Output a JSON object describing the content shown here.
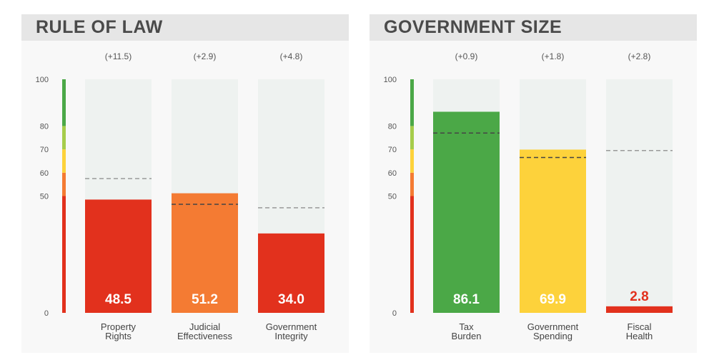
{
  "chart_data": [
    {
      "type": "bar",
      "title": "RULE OF LAW",
      "ylim": [
        0,
        100
      ],
      "yticks": [
        0,
        50,
        60,
        70,
        80,
        100
      ],
      "score_bands": [
        {
          "from": 0,
          "to": 50,
          "color": "#e2311d"
        },
        {
          "from": 50,
          "to": 60,
          "color": "#f47b33"
        },
        {
          "from": 60,
          "to": 70,
          "color": "#fdd23b"
        },
        {
          "from": 70,
          "to": 80,
          "color": "#a6cc4b"
        },
        {
          "from": 80,
          "to": 100,
          "color": "#4ba847"
        }
      ],
      "categories": [
        "Property Rights",
        "Judicial Effectiveness",
        "Government Integrity"
      ],
      "category_lines": [
        [
          "Property",
          "Rights"
        ],
        [
          "Judicial",
          "Effectiveness"
        ],
        [
          "Government",
          "Integrity"
        ]
      ],
      "values": [
        48.5,
        51.2,
        34.0
      ],
      "value_labels": [
        "48.5",
        "51.2",
        "34.0"
      ],
      "changes": [
        "(+11.5)",
        "(+2.9)",
        "(+4.8)"
      ],
      "reference_values": [
        57.5,
        46.5,
        45.0
      ],
      "bar_colors": [
        "#e2311d",
        "#f47b33",
        "#e2311d"
      ]
    },
    {
      "type": "bar",
      "title": "GOVERNMENT SIZE",
      "ylim": [
        0,
        100
      ],
      "yticks": [
        0,
        50,
        60,
        70,
        80,
        100
      ],
      "score_bands": [
        {
          "from": 0,
          "to": 50,
          "color": "#e2311d"
        },
        {
          "from": 50,
          "to": 60,
          "color": "#f47b33"
        },
        {
          "from": 60,
          "to": 70,
          "color": "#fdd23b"
        },
        {
          "from": 70,
          "to": 80,
          "color": "#a6cc4b"
        },
        {
          "from": 80,
          "to": 100,
          "color": "#4ba847"
        }
      ],
      "categories": [
        "Tax Burden",
        "Government Spending",
        "Fiscal Health"
      ],
      "category_lines": [
        [
          "Tax",
          "Burden"
        ],
        [
          "Government",
          "Spending"
        ],
        [
          "Fiscal",
          "Health"
        ]
      ],
      "values": [
        86.1,
        69.9,
        2.8
      ],
      "value_labels": [
        "86.1",
        "69.9",
        "2.8"
      ],
      "changes": [
        "(+0.9)",
        "(+1.8)",
        "(+2.8)"
      ],
      "reference_values": [
        77.0,
        66.5,
        69.5
      ],
      "bar_colors": [
        "#4ba847",
        "#fdd23b",
        "#e2311d"
      ]
    }
  ]
}
